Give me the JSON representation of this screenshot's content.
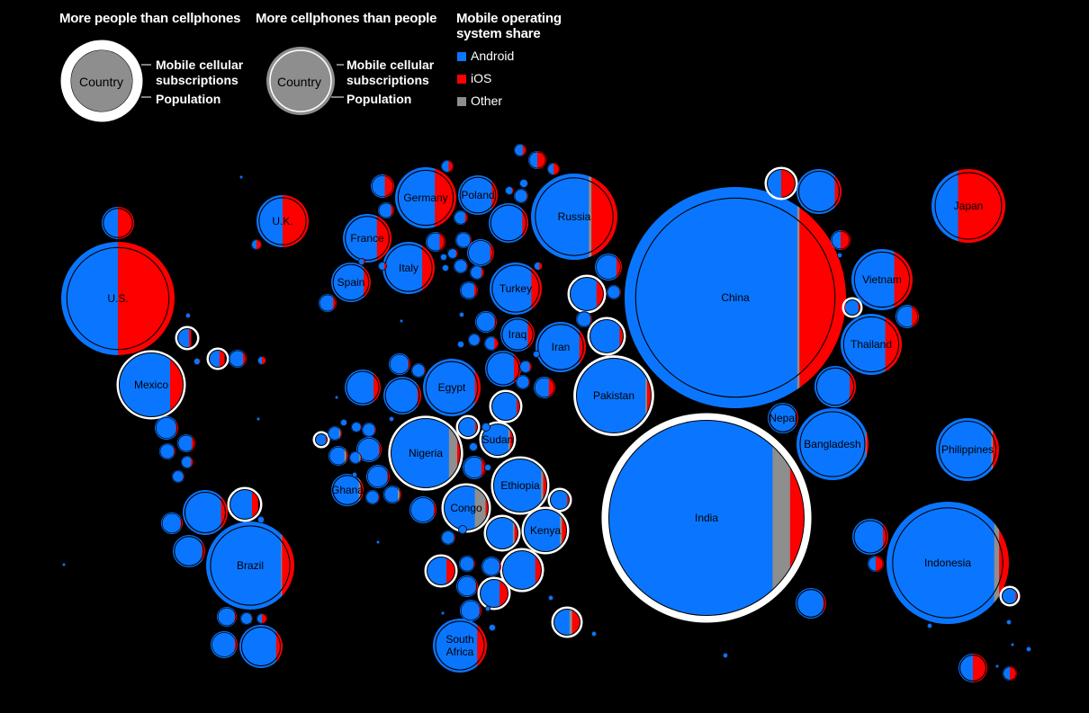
{
  "legend": {
    "more_people_title": "More people than cellphones",
    "more_phones_title": "More cellphones than people",
    "country_label": "Country",
    "subscriptions_label_1": "Mobile cellular",
    "subscriptions_label_2": "subscriptions",
    "population_label": "Population",
    "os_title_1": "Mobile operating",
    "os_title_2": "system share",
    "os_items": [
      {
        "label": "Android",
        "color": "#0a76ff"
      },
      {
        "label": "iOS",
        "color": "#ff0000"
      },
      {
        "label": "Other",
        "color": "#8e8e8e"
      }
    ]
  },
  "colors": {
    "android": "#0a76ff",
    "ios": "#ff0000",
    "other": "#8e8e8e",
    "population_ring": "#ffffff",
    "background": "#000000"
  },
  "countries": [
    {
      "name": "China",
      "android": 0.78,
      "ios": 0.21,
      "other": 0.01,
      "more_phones": true
    },
    {
      "name": "India",
      "android": 0.84,
      "ios": 0.07,
      "other": 0.09,
      "more_phones": false
    },
    {
      "name": "Indonesia",
      "android": 0.88,
      "ios": 0.08,
      "other": 0.04,
      "more_phones": true
    },
    {
      "name": "U.S.",
      "android": 0.5,
      "ios": 0.5,
      "other": 0.0,
      "more_phones": true
    },
    {
      "name": "Brazil",
      "android": 0.85,
      "ios": 0.14,
      "other": 0.01,
      "more_phones": true
    },
    {
      "name": "Nigeria",
      "android": 0.84,
      "ios": 0.04,
      "other": 0.12,
      "more_phones": false
    },
    {
      "name": "Pakistan",
      "android": 0.93,
      "ios": 0.05,
      "other": 0.02,
      "more_phones": false
    },
    {
      "name": "Russia",
      "android": 0.67,
      "ios": 0.3,
      "other": 0.03,
      "more_phones": true
    },
    {
      "name": "Bangladesh",
      "android": 0.96,
      "ios": 0.03,
      "other": 0.01,
      "more_phones": true
    },
    {
      "name": "Japan",
      "android": 0.36,
      "ios": 0.64,
      "other": 0.0,
      "more_phones": true
    },
    {
      "name": "Mexico",
      "android": 0.8,
      "ios": 0.2,
      "other": 0.0,
      "more_phones": false
    },
    {
      "name": "Philippines",
      "android": 0.88,
      "ios": 0.1,
      "other": 0.02,
      "more_phones": true
    },
    {
      "name": "Vietnam",
      "android": 0.7,
      "ios": 0.3,
      "other": 0.0,
      "more_phones": true
    },
    {
      "name": "Egypt",
      "android": 0.9,
      "ios": 0.1,
      "other": 0.0,
      "more_phones": true
    },
    {
      "name": "Ethiopia",
      "android": 0.9,
      "ios": 0.06,
      "other": 0.04,
      "more_phones": false
    },
    {
      "name": "Germany",
      "android": 0.65,
      "ios": 0.35,
      "other": 0.0,
      "more_phones": true
    },
    {
      "name": "Iran",
      "android": 0.87,
      "ios": 0.13,
      "other": 0.0,
      "more_phones": true
    },
    {
      "name": "Turkey",
      "android": 0.8,
      "ios": 0.2,
      "other": 0.0,
      "more_phones": true
    },
    {
      "name": "Congo",
      "android": 0.7,
      "ios": 0.05,
      "other": 0.25,
      "more_phones": false
    },
    {
      "name": "Thailand",
      "android": 0.73,
      "ios": 0.27,
      "other": 0.0,
      "more_phones": true
    },
    {
      "name": "U.K.",
      "android": 0.5,
      "ios": 0.5,
      "other": 0.0,
      "more_phones": true
    },
    {
      "name": "France",
      "android": 0.7,
      "ios": 0.3,
      "other": 0.0,
      "more_phones": true
    },
    {
      "name": "Italy",
      "android": 0.76,
      "ios": 0.24,
      "other": 0.0,
      "more_phones": true
    },
    {
      "name": "South Africa",
      "android": 0.82,
      "ios": 0.18,
      "other": 0.0,
      "more_phones": true
    },
    {
      "name": "Kenya",
      "android": 0.85,
      "ios": 0.1,
      "other": 0.05,
      "more_phones": false
    },
    {
      "name": "Spain",
      "android": 0.82,
      "ios": 0.18,
      "other": 0.0,
      "more_phones": true
    },
    {
      "name": "Poland",
      "android": 0.85,
      "ios": 0.15,
      "other": 0.0,
      "more_phones": true
    },
    {
      "name": "Iraq",
      "android": 0.8,
      "ios": 0.2,
      "other": 0.0,
      "more_phones": true
    },
    {
      "name": "Sudan",
      "android": 0.85,
      "ios": 0.1,
      "other": 0.05,
      "more_phones": false
    },
    {
      "name": "Nepal",
      "android": 0.92,
      "ios": 0.08,
      "other": 0.0,
      "more_phones": true
    },
    {
      "name": "Ghana",
      "android": 0.85,
      "ios": 0.1,
      "other": 0.05,
      "more_phones": true
    }
  ]
}
